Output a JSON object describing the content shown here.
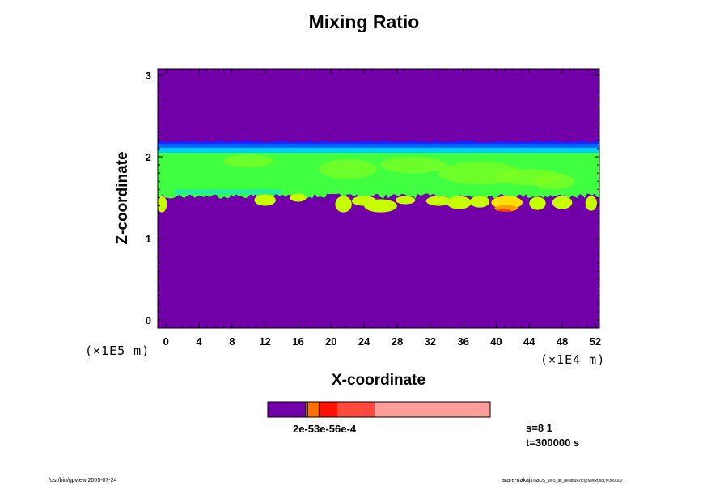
{
  "chart_data": {
    "type": "heatmap",
    "title": "Mixing Ratio",
    "xlabel": "X-coordinate",
    "ylabel": "Z-coordinate",
    "x_unit": "(×1E4 m)",
    "y_unit": "(×1E5 m)",
    "xlim": [
      -1,
      52.5
    ],
    "ylim": [
      -0.1,
      3.08
    ],
    "x_ticks": [
      "0",
      "4",
      "8",
      "12",
      "16",
      "20",
      "24",
      "28",
      "32",
      "36",
      "40",
      "44",
      "48",
      "52"
    ],
    "y_ticks": [
      "0",
      "1",
      "2",
      "3"
    ],
    "colors": {
      "background": "#7100a8",
      "upper_edge": "#2020ff",
      "blue_band": "#0066ff",
      "cyan": "#00d0ff",
      "aqua": "#20f0a0",
      "green": "#40ff40",
      "light_green": "#80ff20",
      "yellow_green": "#c8ff00",
      "yellow": "#ffe000",
      "orange": "#ff9a00",
      "red_orange": "#ff4000"
    },
    "layers": {
      "blue_top_z": 2.19,
      "green_top_z": 2.1,
      "green_bottom_z": 1.55,
      "cloud_bottom_min_z": 1.33
    },
    "colorbar": {
      "labels_overlap": "2e-53e-56e-4",
      "segments": [
        {
          "value": 0.17,
          "color": "#7100a8"
        },
        {
          "value": 0.005,
          "color": "#e8d000"
        },
        {
          "value": 0.005,
          "color": "#ffb000"
        },
        {
          "value": 0.05,
          "color": "#ff7000"
        },
        {
          "value": 0.085,
          "color": "#ff1000"
        },
        {
          "value": 0.165,
          "color": "#ff4a40"
        },
        {
          "value": 0.52,
          "color": "#ff9e9a"
        }
      ]
    }
  },
  "info": {
    "s_label": "s=8 1",
    "t_label": "t=300000 s"
  },
  "footer": {
    "left": "/usr/bin/gpview 2005-07-24",
    "right_main": "arare-nakajima",
    "right_small": "OS_1e-5_all_heatflux.nc@MixRt,sct,t=300000"
  }
}
